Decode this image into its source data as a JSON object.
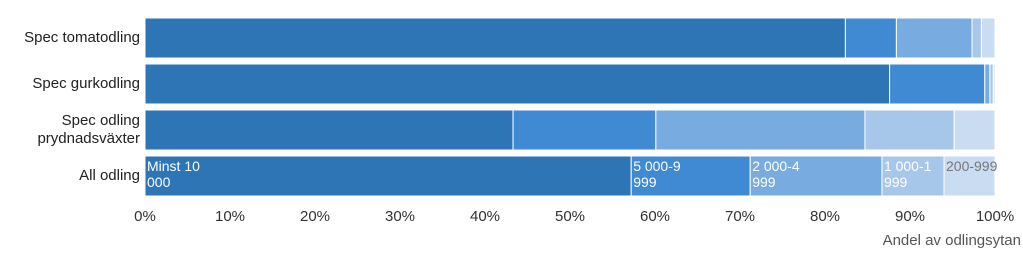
{
  "chart_data": {
    "type": "bar",
    "orientation": "horizontal",
    "stacked": true,
    "categories": [
      "Spec tomatodling",
      "Spec gurkodling",
      "Spec odling prydnadsväxter",
      "All odling"
    ],
    "series": [
      {
        "name": "Minst 10 000",
        "color": "#2e75b6",
        "values": [
          82.4,
          87.6,
          43.3,
          57.2
        ]
      },
      {
        "name": "5 000-9 999",
        "color": "#3f8ad2",
        "values": [
          6.0,
          11.2,
          16.8,
          14.0
        ]
      },
      {
        "name": "2 000-4 999",
        "color": "#78abdf",
        "values": [
          8.9,
          0.6,
          24.6,
          15.5
        ]
      },
      {
        "name": "1 000-1 999",
        "color": "#a6c7ea",
        "values": [
          1.1,
          0.4,
          10.5,
          7.3
        ]
      },
      {
        "name": "200-999",
        "color": "#c9dcf1",
        "values": [
          1.6,
          0.2,
          4.8,
          6.0
        ]
      }
    ],
    "xlim": [
      0,
      100
    ],
    "xticks": [
      {
        "value": 0,
        "label": "0%"
      },
      {
        "value": 10,
        "label": "10%"
      },
      {
        "value": 20,
        "label": "20%"
      },
      {
        "value": 30,
        "label": "30%"
      },
      {
        "value": 40,
        "label": "40%"
      },
      {
        "value": 50,
        "label": "50%"
      },
      {
        "value": 60,
        "label": "60%"
      },
      {
        "value": 70,
        "label": "70%"
      },
      {
        "value": 80,
        "label": "80%"
      },
      {
        "value": 90,
        "label": "90%"
      },
      {
        "value": 100,
        "label": "100%"
      }
    ],
    "x_label": "Andel av odlingsytan",
    "legend": "inside-last-bar"
  }
}
